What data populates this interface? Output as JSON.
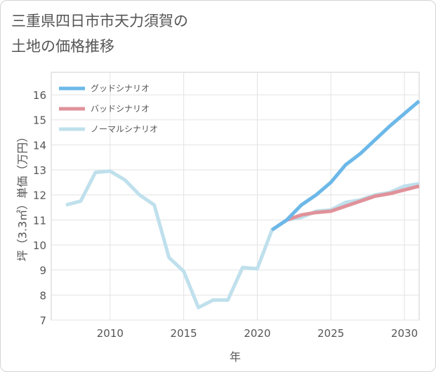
{
  "title": "三重県四日市市天力須賀の\n土地の価格推移",
  "chart_data": {
    "type": "line",
    "xlabel": "年",
    "ylabel": "坪（3.3㎡）単価（万円）",
    "xlim": [
      2006,
      2031
    ],
    "ylim": [
      7,
      16.9
    ],
    "xticks": [
      2010,
      2015,
      2020,
      2025,
      2030
    ],
    "yticks": [
      7,
      8,
      9,
      10,
      11,
      12,
      13,
      14,
      15,
      16
    ],
    "grid": true,
    "legend_position": "top-left",
    "series": [
      {
        "name": "グッドシナリオ",
        "color": "#6cb8e8",
        "x": [
          2021,
          2022,
          2023,
          2024,
          2025,
          2026,
          2027,
          2028,
          2029,
          2030,
          2031
        ],
        "y": [
          10.6,
          11.0,
          11.6,
          12.0,
          12.5,
          13.2,
          13.65,
          14.2,
          14.75,
          15.25,
          15.75
        ]
      },
      {
        "name": "バッドシナリオ",
        "color": "#e0929a",
        "x": [
          2021,
          2022,
          2023,
          2024,
          2025,
          2026,
          2027,
          2028,
          2029,
          2030,
          2031
        ],
        "y": [
          10.6,
          11.0,
          11.2,
          11.3,
          11.35,
          11.55,
          11.75,
          11.95,
          12.05,
          12.2,
          12.35
        ]
      },
      {
        "name": "ノーマルシナリオ",
        "color": "#bfe0ec",
        "x": [
          2007,
          2008,
          2009,
          2010,
          2011,
          2012,
          2013,
          2014,
          2015,
          2016,
          2017,
          2018,
          2019,
          2020,
          2021,
          2022,
          2023,
          2024,
          2025,
          2026,
          2027,
          2028,
          2029,
          2030,
          2031
        ],
        "y": [
          11.6,
          11.75,
          12.9,
          12.95,
          12.6,
          12.0,
          11.6,
          9.5,
          8.95,
          7.5,
          7.8,
          7.8,
          9.1,
          9.05,
          10.6,
          11.0,
          11.1,
          11.35,
          11.4,
          11.7,
          11.8,
          12.0,
          12.1,
          12.35,
          12.45
        ]
      }
    ]
  }
}
